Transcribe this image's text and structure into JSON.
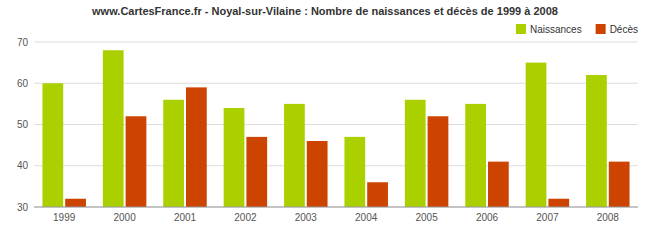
{
  "chart_data": {
    "type": "bar",
    "title": "www.CartesFrance.fr - Noyal-sur-Vilaine : Nombre de naissances et décès de 1999 à 2008",
    "categories": [
      "1999",
      "2000",
      "2001",
      "2002",
      "2003",
      "2004",
      "2005",
      "2006",
      "2007",
      "2008"
    ],
    "series": [
      {
        "name": "Naissances",
        "color": "#aad000",
        "values": [
          60,
          68,
          56,
          54,
          55,
          47,
          56,
          55,
          65,
          62
        ]
      },
      {
        "name": "Décès",
        "color": "#cc4400",
        "values": [
          32,
          52,
          59,
          47,
          46,
          36,
          52,
          41,
          32,
          41
        ]
      }
    ],
    "ylim": [
      30,
      70
    ],
    "yticks": [
      30,
      40,
      50,
      60,
      70
    ],
    "grid": true,
    "legend": "upper right"
  }
}
